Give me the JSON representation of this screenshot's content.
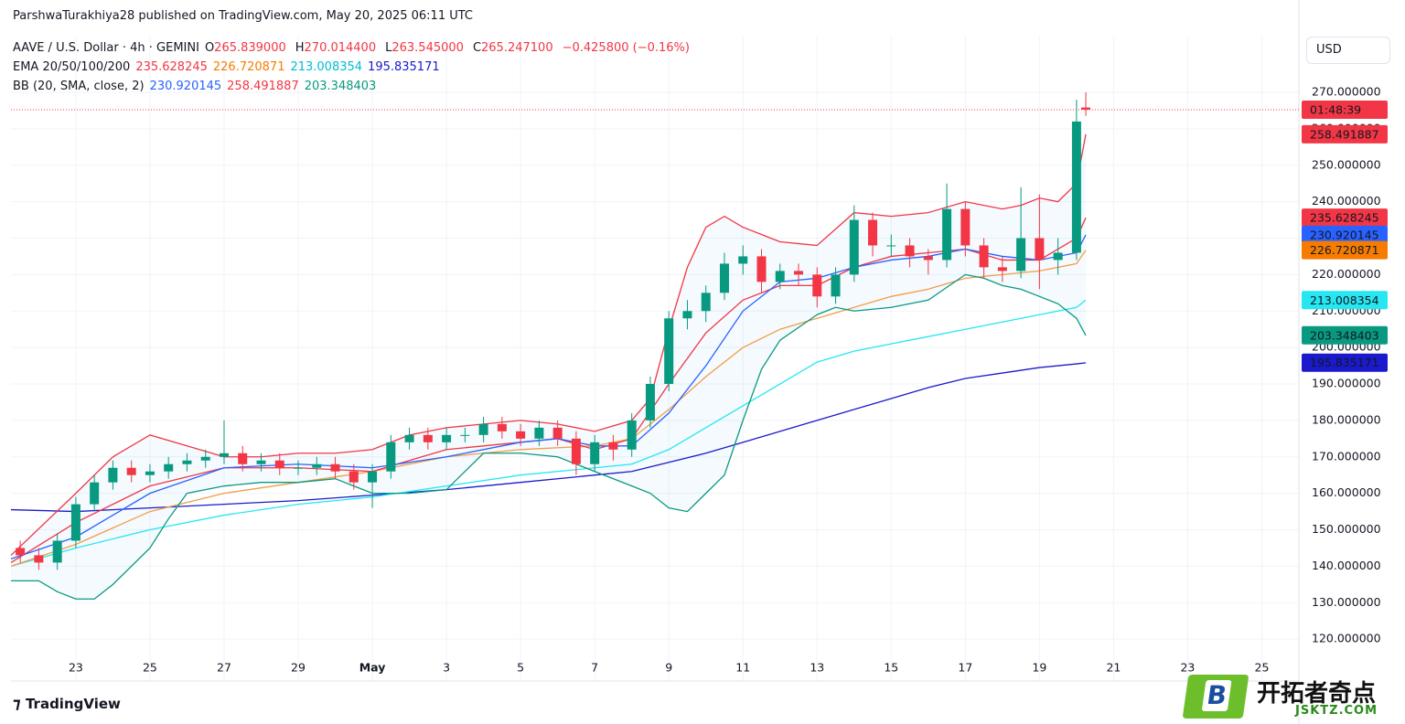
{
  "chart_data": {
    "type": "candlestick",
    "attribution": "ParshwaTurakhiya28 published on TradingView.com, May 20, 2025 06:11 UTC",
    "title": "AAVE / U.S. Dollar · 4h · GEMINI",
    "ohlc": [
      {
        "label": "O",
        "value": "265.839000"
      },
      {
        "label": "H",
        "value": "270.014400"
      },
      {
        "label": "L",
        "value": "263.545000"
      },
      {
        "label": "C",
        "value": "265.247100"
      }
    ],
    "change": "−0.425800 (−0.16%)",
    "ema_legend": {
      "label": "EMA 20/50/100/200",
      "values": [
        {
          "text": "235.628245",
          "color": "#f23645"
        },
        {
          "text": "226.720871",
          "color": "#f57c00"
        },
        {
          "text": "213.008354",
          "color": "#00bcd4"
        },
        {
          "text": "195.835171",
          "color": "#1a1acc"
        }
      ]
    },
    "bb_legend": {
      "label": "BB (20, SMA, close, 2)",
      "values": [
        {
          "text": "230.920145",
          "color": "#2962ff"
        },
        {
          "text": "258.491887",
          "color": "#f23645"
        },
        {
          "text": "203.348403",
          "color": "#089981"
        }
      ]
    },
    "currency": "USD",
    "logo": "TradingView",
    "watermark": {
      "name": "开拓者奇点",
      "url": "JSKTZ.COM",
      "letter": "B"
    },
    "up_color": "#089981",
    "down_color": "#f23645",
    "x": [
      21.5,
      22,
      22.5,
      23,
      23.5,
      24,
      24.5,
      25,
      25.5,
      26,
      26.5,
      27,
      27.5,
      28,
      28.5,
      29,
      29.5,
      30,
      30.5,
      31,
      31.5,
      32,
      32.5,
      33,
      33.5,
      34,
      34.5,
      35,
      35.5,
      36,
      36.5,
      37,
      37.5,
      38,
      38.5,
      39,
      39.5,
      40,
      40.5,
      41,
      41.5,
      42,
      42.5,
      43,
      43.5,
      44,
      44.5,
      45,
      45.5,
      46,
      46.5,
      47,
      47.5,
      48,
      48.5,
      49,
      49.5,
      50,
      50.25
    ],
    "open": [
      145,
      143,
      141,
      147,
      157,
      163,
      167,
      165,
      166,
      168,
      169,
      170,
      171,
      168,
      169,
      167,
      167,
      168,
      166,
      163,
      166,
      174,
      176,
      174,
      176,
      176,
      179,
      177,
      175,
      178,
      175,
      168,
      174,
      172,
      180,
      190,
      208,
      210,
      215,
      223,
      225,
      218,
      221,
      220,
      214,
      220,
      235,
      228,
      228,
      225,
      224,
      238,
      228,
      222,
      221,
      230,
      224,
      226,
      265.839
    ],
    "high": [
      147,
      145,
      149,
      159,
      165,
      169,
      169,
      168,
      170,
      171,
      172,
      180,
      173,
      171,
      171,
      169,
      170,
      170,
      168,
      168,
      176,
      178,
      178,
      178,
      178,
      181,
      181,
      179,
      180,
      180,
      177,
      176,
      176,
      182,
      192,
      210,
      213,
      217,
      226,
      228,
      227,
      223,
      223,
      222,
      222,
      239,
      237,
      231,
      230,
      227,
      245,
      240,
      230,
      225,
      244,
      242,
      230,
      268,
      270.0144
    ],
    "low": [
      141,
      139,
      139,
      145,
      155,
      161,
      163,
      163,
      164,
      166,
      167,
      168,
      166,
      166,
      165,
      165,
      165,
      164,
      161,
      156,
      164,
      172,
      172,
      172,
      174,
      174,
      175,
      173,
      173,
      173,
      165,
      166,
      169,
      170,
      178,
      188,
      205,
      207,
      213,
      220,
      215,
      216,
      217,
      211,
      212,
      218,
      225,
      225,
      222,
      220,
      222,
      225,
      219,
      218,
      219,
      216,
      220,
      224,
      263.545
    ],
    "close": [
      143,
      141,
      147,
      157,
      163,
      167,
      165,
      166,
      168,
      169,
      170,
      171,
      168,
      169,
      167,
      167,
      168,
      166,
      163,
      166,
      174,
      176,
      174,
      176,
      176,
      179,
      177,
      175,
      178,
      175,
      168,
      174,
      172,
      180,
      190,
      208,
      210,
      215,
      223,
      225,
      218,
      221,
      220,
      214,
      220,
      235,
      228,
      228,
      225,
      224,
      238,
      228,
      222,
      221,
      230,
      224,
      226,
      262,
      265.2471
    ],
    "lines": [
      {
        "color": "#1a1acc",
        "x": [
          21.25,
          23,
          25,
          27,
          29,
          31,
          33,
          35,
          37,
          38,
          39,
          40,
          41,
          42,
          43,
          44,
          45,
          46,
          47,
          48,
          49,
          50,
          50.25
        ],
        "values": [
          155.5,
          155,
          156,
          157,
          158,
          159.5,
          161,
          163,
          165,
          166,
          168.5,
          171,
          174,
          177,
          180,
          183,
          186,
          189,
          191.5,
          193,
          194.5,
          195.5,
          195.8
        ]
      },
      {
        "color": "#26e6f2",
        "x": [
          21.25,
          23,
          25,
          27,
          29,
          31,
          33,
          35,
          37,
          38,
          39,
          40,
          41,
          42,
          43,
          44,
          45,
          46,
          47,
          48,
          49,
          50,
          50.25
        ],
        "values": [
          140,
          145,
          150,
          154,
          157,
          159,
          162,
          165,
          167,
          168,
          172,
          178,
          184,
          190,
          196,
          199,
          201,
          203,
          205,
          207,
          209,
          211,
          213
        ]
      },
      {
        "color": "#f59c45",
        "x": [
          21.25,
          23,
          25,
          27,
          29,
          31,
          33,
          35,
          37,
          38,
          39,
          40,
          41,
          42,
          43,
          44,
          45,
          46,
          47,
          48,
          49,
          50,
          50.25
        ],
        "values": [
          140,
          146,
          155,
          160,
          163,
          166,
          170,
          172,
          173,
          175,
          183,
          192,
          200,
          205,
          208,
          211,
          214,
          216,
          219,
          220,
          221,
          223,
          226.7
        ]
      },
      {
        "color": "#f23645",
        "x": [
          21.25,
          23,
          25,
          27,
          29,
          31,
          33,
          35,
          36,
          37,
          38,
          39,
          40,
          41,
          42,
          43,
          44,
          45,
          46,
          47,
          48,
          49,
          50,
          50.25
        ],
        "values": [
          141,
          152,
          162,
          167,
          167,
          166,
          172,
          174,
          175,
          172,
          175,
          190,
          204,
          213,
          217,
          217,
          222,
          225,
          226,
          227,
          224,
          224,
          230,
          235.6
        ]
      },
      {
        "color": "#2962ff",
        "x": [
          21.25,
          23,
          25,
          27,
          29,
          31,
          33,
          35,
          36,
          37,
          38,
          39,
          40,
          41,
          42,
          43,
          44,
          45,
          46,
          47,
          48,
          49,
          50,
          50.25
        ],
        "values": [
          142,
          148,
          160,
          167,
          168,
          167,
          170,
          174,
          175,
          173,
          173,
          182,
          195,
          210,
          218,
          219,
          222,
          224,
          225,
          227,
          225,
          224,
          226,
          230.9
        ]
      },
      {
        "color": "#f23645",
        "x": [
          21.25,
          23,
          24,
          25,
          26,
          27,
          28,
          29,
          30,
          31,
          32,
          33,
          34,
          35,
          36,
          37,
          38,
          38.5,
          39,
          39.5,
          40,
          40.5,
          41,
          41.5,
          42,
          43,
          44,
          45,
          46,
          47,
          48,
          48.5,
          49,
          49.5,
          50,
          50.25
        ],
        "values": [
          143,
          160,
          170,
          176,
          173,
          170,
          170,
          171,
          171,
          172,
          176,
          178,
          179,
          180,
          179,
          177,
          180,
          186,
          205,
          222,
          233,
          236,
          233,
          231,
          229,
          228,
          237,
          236,
          237,
          240,
          238,
          239,
          241,
          240,
          245,
          258.5
        ]
      },
      {
        "color": "#089981",
        "x": [
          21.25,
          22,
          22.5,
          23,
          23.5,
          24,
          25,
          25.5,
          26,
          27,
          28,
          29,
          30,
          31,
          32,
          33,
          33.5,
          34,
          35,
          36,
          37,
          38,
          38.5,
          39,
          39.5,
          40,
          40.5,
          41,
          41.5,
          42,
          43,
          43.5,
          44,
          45,
          46,
          47,
          47.5,
          48,
          48.5,
          49,
          49.5,
          50,
          50.25
        ],
        "values": [
          136,
          136,
          133,
          131,
          131,
          135,
          145,
          153,
          160,
          162,
          163,
          163,
          164,
          160,
          160,
          161,
          166,
          171,
          171,
          170,
          166,
          162,
          160,
          156,
          155,
          160,
          165,
          180,
          194,
          202,
          209,
          211,
          210,
          211,
          213,
          220,
          219,
          217,
          216,
          214,
          212,
          208,
          203.3
        ]
      }
    ],
    "bb_fill": "#2196f3",
    "last_price": 265.2471,
    "countdown": {
      "label": "01:48:39",
      "value": 265.2471,
      "color": "#f23645"
    },
    "price_tags": [
      {
        "value": 258.491887,
        "color": "#f23645",
        "text_color": "#ffffff"
      },
      {
        "value": 235.628245,
        "color": "#f23645",
        "text_color": "#ffffff"
      },
      {
        "value": 230.920145,
        "color": "#2962ff",
        "text_color": "#ffffff"
      },
      {
        "value": 226.720871,
        "color": "#f57c00",
        "text_color": "#ffffff"
      },
      {
        "value": 213.008354,
        "color": "#26e6f2",
        "text_color": "#000000"
      },
      {
        "value": 203.348403,
        "color": "#089981",
        "text_color": "#ffffff"
      },
      {
        "value": 195.835171,
        "color": "#1a1acc",
        "text_color": "#ffffff"
      }
    ],
    "xlim": [
      21.25,
      56.0
    ],
    "ylim": [
      108.5,
      285.3
    ],
    "xticks": [
      23,
      25,
      27,
      29,
      {
        "value": 31,
        "label": "May"
      },
      {
        "value": 33,
        "label": "3"
      },
      {
        "value": 35,
        "label": "5"
      },
      {
        "value": 37,
        "label": "7"
      },
      {
        "value": 39,
        "label": "9"
      },
      {
        "value": 41,
        "label": "11"
      },
      {
        "value": 43,
        "label": "13"
      },
      {
        "value": 45,
        "label": "15"
      },
      {
        "value": 47,
        "label": "17"
      },
      {
        "value": 49,
        "label": "19"
      },
      {
        "value": 51,
        "label": "21"
      },
      {
        "value": 53,
        "label": "23"
      },
      {
        "value": 55,
        "label": "25"
      }
    ],
    "yticks": [
      {
        "value": 120,
        "label": "120.000000"
      },
      {
        "value": 130,
        "label": "130.000000"
      },
      {
        "value": 140,
        "label": "140.000000"
      },
      {
        "value": 150,
        "label": "150.000000"
      },
      {
        "value": 160,
        "label": "160.000000"
      },
      {
        "value": 170,
        "label": "170.000000"
      },
      {
        "value": 180,
        "label": "180.000000"
      },
      {
        "value": 190,
        "label": "190.000000"
      },
      {
        "value": 200,
        "label": "200.000000"
      },
      {
        "value": 210,
        "label": "210.000000"
      },
      {
        "value": 220,
        "label": "220.000000"
      },
      {
        "value": 230,
        "label": "230.000000"
      },
      {
        "value": 240,
        "label": "240.000000"
      },
      {
        "value": 250,
        "label": "250.000000"
      },
      {
        "value": 260,
        "label": "260.000000"
      },
      {
        "value": 270,
        "label": "270.000000"
      }
    ],
    "grid": true
  }
}
